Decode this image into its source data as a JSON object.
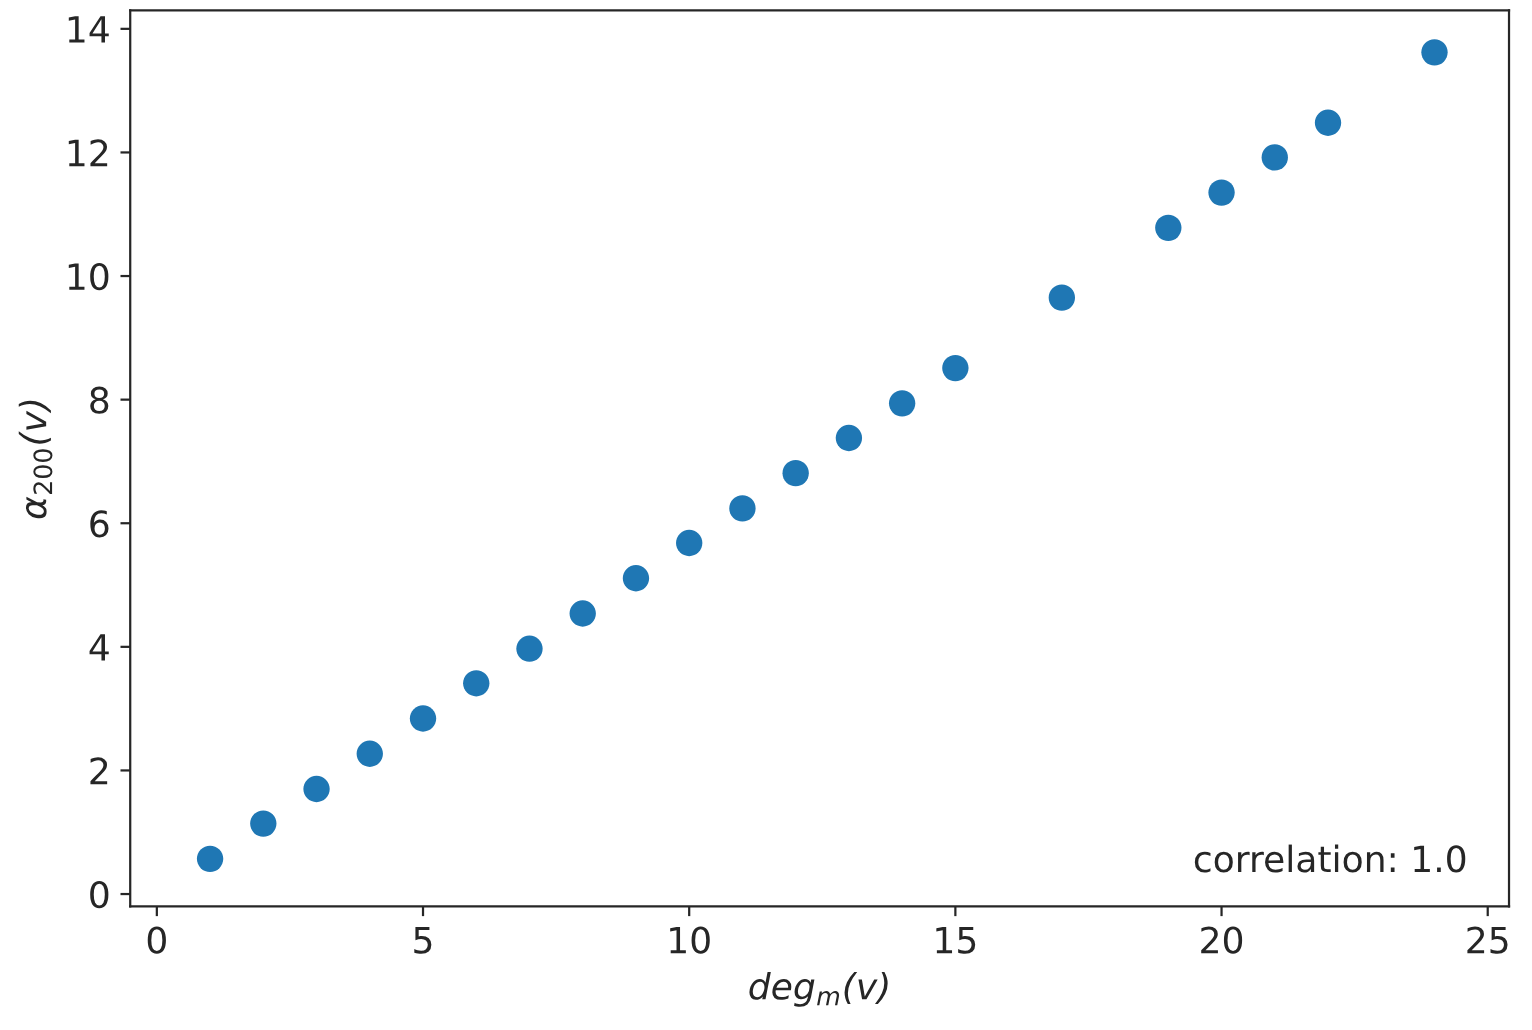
{
  "chart_data": {
    "type": "scatter",
    "xlabel": "deg$_{m}$(v)",
    "ylabel": "α$_{200}$(v)",
    "annotations": [
      "correlation: 1.0"
    ],
    "series": [
      {
        "color": "#1f77b4",
        "x": [
          1,
          2,
          3,
          4,
          5,
          6,
          7,
          8,
          9,
          10,
          11,
          12,
          13,
          14,
          15,
          17,
          19,
          20,
          21,
          22,
          24
        ],
        "values": [
          0.57,
          1.14,
          1.7,
          2.27,
          2.84,
          3.41,
          3.97,
          4.54,
          5.11,
          5.68,
          6.24,
          6.81,
          7.38,
          7.94,
          8.51,
          9.65,
          10.78,
          11.35,
          11.92,
          12.48,
          13.62
        ]
      }
    ],
    "xlim": [
      -0.5,
      25.4
    ],
    "ylim": [
      -0.2,
      14.3
    ],
    "xticks": [
      0,
      5,
      10,
      15,
      20,
      25
    ],
    "yticks": [
      0,
      2,
      4,
      6,
      8,
      10,
      12,
      14
    ],
    "marker": "circle",
    "grid": false,
    "legend": false
  }
}
